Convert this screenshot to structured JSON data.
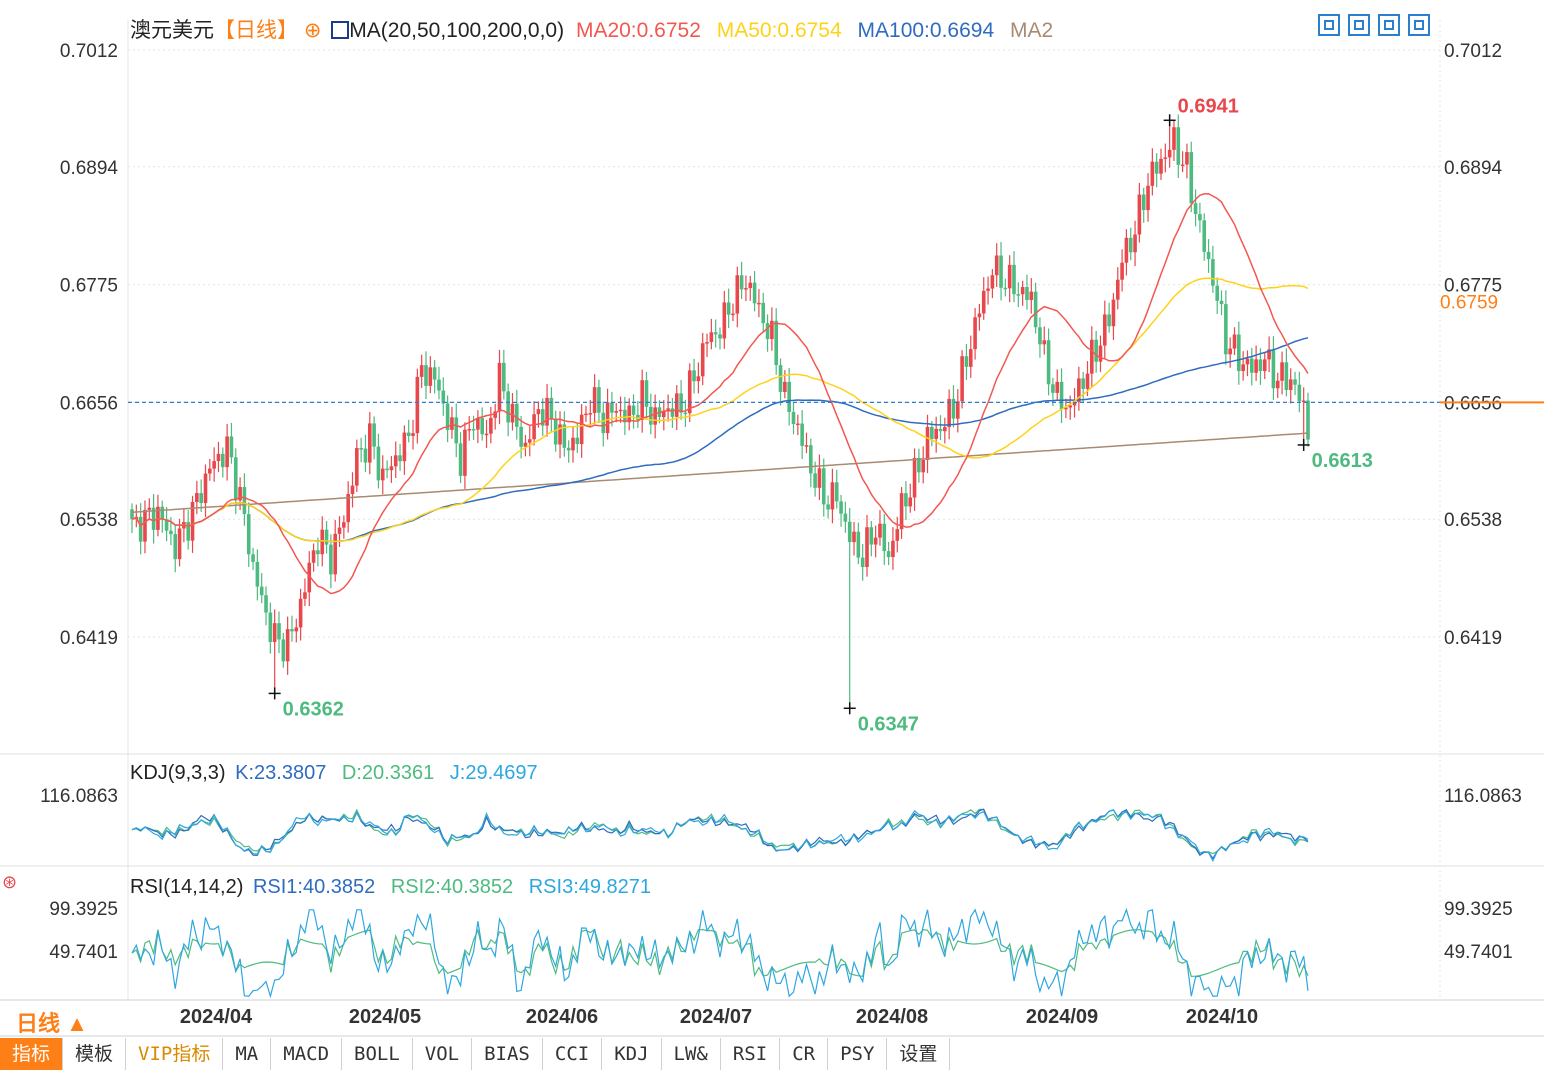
{
  "header": {
    "symbol": "澳元美元",
    "period": "【日线】",
    "indicator": "MA(20,50,100,200,0,0)",
    "ma20": "MA20:0.6752",
    "ma50": "MA50:0.6754",
    "ma100": "MA100:0.6694",
    "ma200": "MA2"
  },
  "colors": {
    "up": "#e8474c",
    "down": "#4dbb7f",
    "ma20": "#f25850",
    "ma50": "#ffd21a",
    "ma100": "#2f6cc0",
    "ma200": "#a88b72",
    "kdj_k": "#2f6cc0",
    "kdj_d": "#4dbb7f",
    "kdj_j": "#2ea7e0"
  },
  "chart_data": {
    "type": "candlestick",
    "ylim": [
      0.63,
      0.7012
    ],
    "yticks": [
      "0.7012",
      "0.6894",
      "0.6775",
      "0.6656",
      "0.6538",
      "0.6419"
    ],
    "xticks": [
      "2024/04",
      "2024/05",
      "2024/06",
      "2024/07",
      "2024/08",
      "2024/09",
      "2024/10"
    ],
    "current_price": "0.6656",
    "current_price_value": 0.6656,
    "right_tag": "0.6759",
    "right_tag_value": 0.6759,
    "annotations": [
      {
        "label": "0.6941",
        "value": 0.6941,
        "kind": "high"
      },
      {
        "label": "0.6362",
        "value": 0.6362,
        "kind": "low"
      },
      {
        "label": "0.6347",
        "value": 0.6347,
        "kind": "low"
      },
      {
        "label": "0.6613",
        "value": 0.6613,
        "kind": "low"
      }
    ],
    "close_anchors": [
      [
        0,
        0.653
      ],
      [
        6,
        0.6545
      ],
      [
        10,
        0.651
      ],
      [
        14,
        0.6545
      ],
      [
        18,
        0.659
      ],
      [
        22,
        0.661
      ],
      [
        25,
        0.656
      ],
      [
        28,
        0.649
      ],
      [
        31,
        0.644
      ],
      [
        34,
        0.641
      ],
      [
        37,
        0.642
      ],
      [
        40,
        0.647
      ],
      [
        43,
        0.652
      ],
      [
        46,
        0.65
      ],
      [
        49,
        0.654
      ],
      [
        52,
        0.66
      ],
      [
        55,
        0.662
      ],
      [
        58,
        0.658
      ],
      [
        61,
        0.66
      ],
      [
        64,
        0.662
      ],
      [
        67,
        0.669
      ],
      [
        70,
        0.668
      ],
      [
        73,
        0.664
      ],
      [
        76,
        0.66
      ],
      [
        79,
        0.664
      ],
      [
        82,
        0.662
      ],
      [
        85,
        0.668
      ],
      [
        88,
        0.664
      ],
      [
        91,
        0.661
      ],
      [
        94,
        0.665
      ],
      [
        97,
        0.664
      ],
      [
        100,
        0.661
      ],
      [
        103,
        0.662
      ],
      [
        106,
        0.666
      ],
      [
        109,
        0.664
      ],
      [
        112,
        0.665
      ],
      [
        115,
        0.664
      ],
      [
        118,
        0.666
      ],
      [
        121,
        0.664
      ],
      [
        124,
        0.665
      ],
      [
        127,
        0.665
      ],
      [
        130,
        0.668
      ],
      [
        133,
        0.672
      ],
      [
        136,
        0.673
      ],
      [
        139,
        0.676
      ],
      [
        142,
        0.678
      ],
      [
        145,
        0.675
      ],
      [
        148,
        0.672
      ],
      [
        151,
        0.666
      ],
      [
        154,
        0.663
      ],
      [
        157,
        0.659
      ],
      [
        160,
        0.656
      ],
      [
        163,
        0.656
      ],
      [
        166,
        0.652
      ],
      [
        169,
        0.65
      ],
      [
        172,
        0.653
      ],
      [
        175,
        0.65
      ],
      [
        178,
        0.655
      ],
      [
        181,
        0.658
      ],
      [
        184,
        0.662
      ],
      [
        187,
        0.663
      ],
      [
        190,
        0.665
      ],
      [
        193,
        0.67
      ],
      [
        196,
        0.675
      ],
      [
        199,
        0.679
      ],
      [
        202,
        0.678
      ],
      [
        205,
        0.677
      ],
      [
        208,
        0.676
      ],
      [
        211,
        0.67
      ],
      [
        214,
        0.666
      ],
      [
        217,
        0.665
      ],
      [
        220,
        0.668
      ],
      [
        223,
        0.671
      ],
      [
        226,
        0.674
      ],
      [
        229,
        0.68
      ],
      [
        232,
        0.683
      ],
      [
        235,
        0.688
      ],
      [
        238,
        0.69
      ],
      [
        241,
        0.692
      ],
      [
        244,
        0.689
      ],
      [
        247,
        0.683
      ],
      [
        250,
        0.678
      ],
      [
        253,
        0.672
      ],
      [
        256,
        0.67
      ],
      [
        259,
        0.669
      ],
      [
        262,
        0.67
      ],
      [
        265,
        0.668
      ],
      [
        268,
        0.668
      ],
      [
        271,
        0.665
      ],
      [
        272,
        0.663
      ]
    ],
    "kdj": {
      "label": "KDJ(9,3,3)",
      "k": "K:23.3807",
      "d": "D:20.3361",
      "j": "J:29.4697",
      "tick": "116.0863"
    },
    "rsi": {
      "label": "RSI(14,14,2)",
      "rsi1": "RSI1:40.3852",
      "rsi2": "RSI2:40.3852",
      "rsi3": "RSI3:49.8271",
      "ticks": [
        "99.3925",
        "49.7401"
      ]
    }
  },
  "period_button": "日线 ▲",
  "bottom_tabs": [
    "指标",
    "模板",
    "VIP指标",
    "MA",
    "MACD",
    "BOLL",
    "VOL",
    "BIAS",
    "CCI",
    "KDJ",
    "LW&",
    "RSI",
    "CR",
    "PSY",
    "设置"
  ]
}
